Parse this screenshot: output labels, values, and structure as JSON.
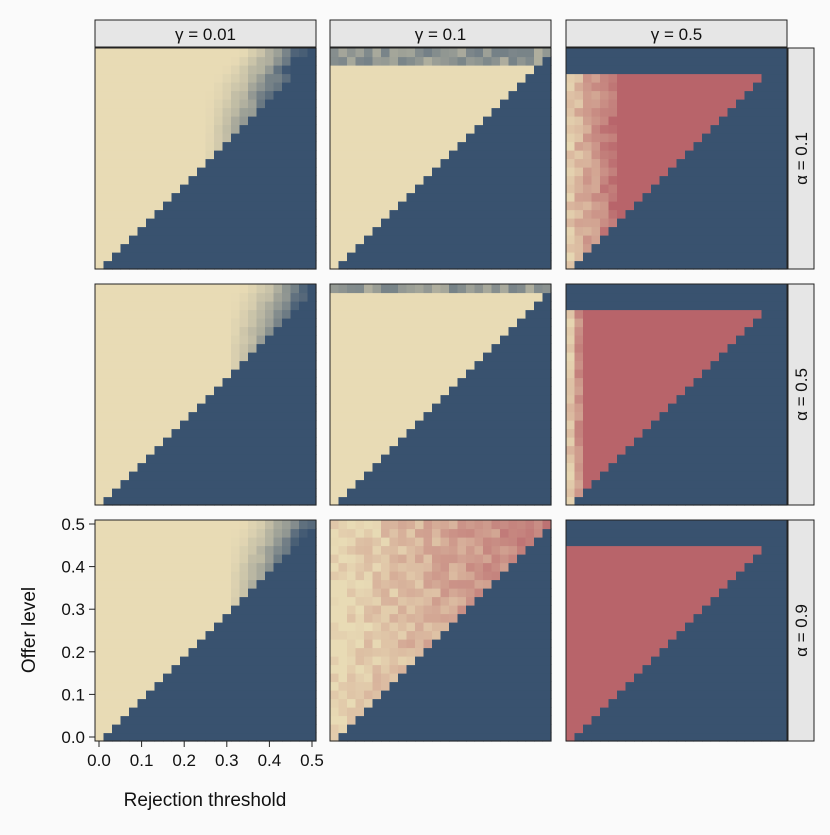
{
  "chart_data": {
    "type": "heatmap",
    "title": "",
    "xlabel": "Rejection threshold",
    "ylabel": "Offer level",
    "x_ticks": [
      "0.0",
      "0.1",
      "0.2",
      "0.3",
      "0.4",
      "0.5"
    ],
    "y_ticks": [
      "0.0",
      "0.1",
      "0.2",
      "0.3",
      "0.4",
      "0.5"
    ],
    "xlim": [
      0,
      0.5
    ],
    "ylim": [
      0,
      0.5
    ],
    "grid_resolution": 0.02,
    "col_facets": [
      "γ = 0.01",
      "γ = 0.1",
      "γ = 0.5"
    ],
    "row_facets": [
      "α = 0.1",
      "α = 0.5",
      "α = 0.9"
    ],
    "colors": {
      "accept": "#e8dbb5",
      "reject": "#39526f",
      "counter": "#b8646a",
      "strip_bg": "#e6e6e6"
    },
    "panels": [
      {
        "row": 0,
        "col": 0,
        "regime": "diffuse_boundary",
        "boundary_ramp": [
          0.25,
          0.45
        ]
      },
      {
        "row": 0,
        "col": 1,
        "regime": "sharp_upper_cut",
        "upper_cut": 0.47
      },
      {
        "row": 0,
        "col": 2,
        "regime": "red_triangle",
        "red_cut": 0.44,
        "cream_fade": [
          0.0,
          0.12
        ]
      },
      {
        "row": 1,
        "col": 0,
        "regime": "diffuse_boundary",
        "boundary_ramp": [
          0.3,
          0.5
        ]
      },
      {
        "row": 1,
        "col": 1,
        "regime": "sharp_upper_cut",
        "upper_cut": 0.49
      },
      {
        "row": 1,
        "col": 2,
        "regime": "red_triangle",
        "red_cut": 0.44,
        "cream_fade": [
          0.0,
          0.04
        ]
      },
      {
        "row": 2,
        "col": 0,
        "regime": "diffuse_boundary",
        "boundary_ramp": [
          0.3,
          0.5
        ]
      },
      {
        "row": 2,
        "col": 1,
        "regime": "cream_to_red",
        "red_cut": 0.5
      },
      {
        "row": 2,
        "col": 2,
        "regime": "red_triangle",
        "red_cut": 0.44,
        "cream_fade": [
          0.0,
          0.0
        ]
      }
    ]
  }
}
